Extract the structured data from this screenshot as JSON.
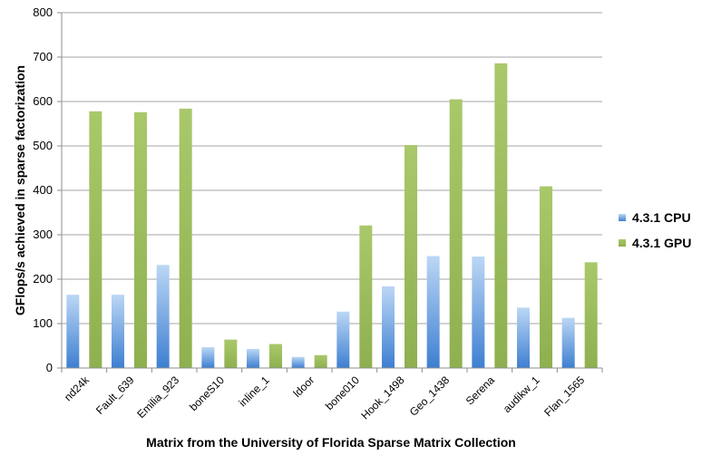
{
  "chart_data": {
    "type": "bar",
    "title": "",
    "xlabel": "Matrix from the University of Florida Sparse Matrix Collection",
    "ylabel": "GFlops/s achieved in sparse factorization",
    "ylim": [
      0,
      800
    ],
    "yticks": [
      0,
      100,
      200,
      300,
      400,
      500,
      600,
      700,
      800
    ],
    "grid": true,
    "legend_position": "right",
    "categories": [
      "nd24k",
      "Fault_639",
      "Emilia_923",
      "boneS10",
      "inline_1",
      "ldoor",
      "bone010",
      "Hook_1498",
      "Geo_1438",
      "Serena",
      "audikw_1",
      "Flan_1565"
    ],
    "series": [
      {
        "name": "4.3.1 CPU",
        "color": "#5b9bd5",
        "values": [
          165,
          165,
          232,
          47,
          43,
          25,
          127,
          184,
          252,
          251,
          136,
          113
        ]
      },
      {
        "name": "4.3.1 GPU",
        "color": "#9bbb59",
        "values": [
          578,
          576,
          584,
          64,
          54,
          29,
          321,
          502,
          605,
          686,
          409,
          238
        ]
      }
    ]
  }
}
